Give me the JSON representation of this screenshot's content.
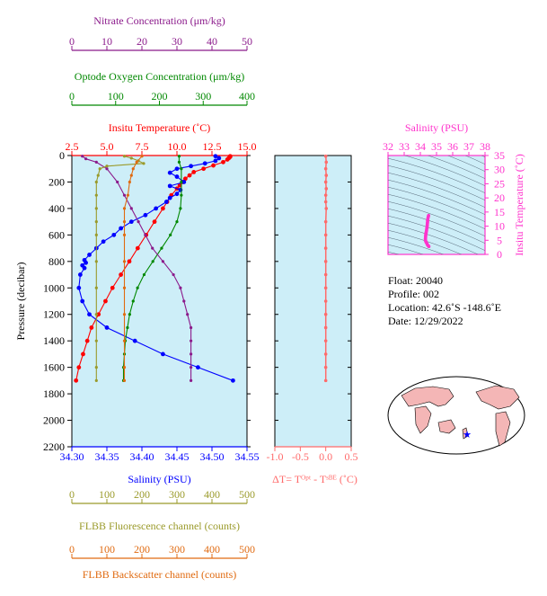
{
  "colors": {
    "plot_bg": "#cdeef8",
    "temperature": "#ff0000",
    "salinity": "#0000ff",
    "oxygen": "#008800",
    "nitrate": "#8b1a8b",
    "fluorescence": "#9a9a2a",
    "backscatter": "#e06a10",
    "delta_t": "#ff6a6a",
    "ts_panel": "#ff33cc",
    "map_land": "#f4b6b6",
    "float_marker": "#0000ff"
  },
  "float_info": {
    "float": "Float:  20040",
    "profile": "Profile:  002",
    "location": "Location:  42.6˚S  -148.6˚E",
    "date": "Date:  12/29/2022"
  },
  "chart_data": [
    {
      "type": "line",
      "panel": "main-profile",
      "ylabel": "Pressure (decibar)",
      "ylim": [
        2200,
        0
      ],
      "yticks": [
        "0",
        "200",
        "400",
        "600",
        "800",
        "1000",
        "1200",
        "1400",
        "1600",
        "1800",
        "2000",
        "2200"
      ],
      "axes": {
        "nitrate": {
          "title": "Nitrate Concentration (μm/kg)",
          "range": [
            0,
            50
          ],
          "ticks": [
            "0",
            "10",
            "20",
            "30",
            "40",
            "50"
          ]
        },
        "oxygen": {
          "title": "Optode Oxygen Concentration (μm/kg)",
          "range": [
            0,
            400
          ],
          "ticks": [
            "0",
            "100",
            "200",
            "300",
            "400"
          ]
        },
        "temperature": {
          "title": "Insitu Temperature (˚C)",
          "range": [
            2.5,
            15.0
          ],
          "ticks": [
            "2.5",
            "5.0",
            "7.5",
            "10.0",
            "12.5",
            "15.0"
          ]
        },
        "salinity": {
          "title": "Salinity (PSU)",
          "range": [
            34.3,
            34.55
          ],
          "ticks": [
            "34.30",
            "34.35",
            "34.40",
            "34.45",
            "34.50",
            "34.55"
          ]
        },
        "fluorescence": {
          "title": "FLBB Fluorescence channel (counts)",
          "range": [
            0,
            500
          ],
          "ticks": [
            "0",
            "100",
            "200",
            "300",
            "400",
            "500"
          ]
        },
        "backscatter": {
          "title": "FLBB Backscatter channel (counts)",
          "range": [
            0,
            500
          ],
          "ticks": [
            "0",
            "100",
            "200",
            "300",
            "400",
            "500"
          ]
        }
      },
      "series": [
        {
          "axis": "temperature",
          "pressure": [
            5,
            10,
            20,
            30,
            50,
            75,
            100,
            125,
            150,
            175,
            200,
            225,
            250,
            300,
            350,
            400,
            500,
            600,
            700,
            800,
            900,
            1000,
            1100,
            1200,
            1300,
            1400,
            1500,
            1600,
            1700
          ],
          "values": [
            13.8,
            13.8,
            13.7,
            13.6,
            13.3,
            12.6,
            11.9,
            11.2,
            10.9,
            10.6,
            10.4,
            10.2,
            10.0,
            9.6,
            9.3,
            9.0,
            8.4,
            7.8,
            7.2,
            6.6,
            6.0,
            5.4,
            4.9,
            4.4,
            3.9,
            3.6,
            3.3,
            3.0,
            2.8
          ]
        },
        {
          "axis": "salinity",
          "pressure": [
            5,
            20,
            40,
            60,
            80,
            100,
            130,
            160,
            200,
            230,
            260,
            290,
            320,
            350,
            400,
            450,
            500,
            550,
            600,
            650,
            700,
            750,
            790,
            810,
            830,
            850,
            900,
            1000,
            1100,
            1200,
            1300,
            1400,
            1500,
            1600,
            1700
          ],
          "values": [
            34.505,
            34.51,
            34.505,
            34.49,
            34.47,
            34.45,
            34.44,
            34.45,
            34.46,
            34.44,
            34.455,
            34.45,
            34.44,
            34.435,
            34.42,
            34.405,
            34.385,
            34.37,
            34.36,
            34.345,
            34.335,
            34.325,
            34.318,
            34.32,
            34.315,
            34.318,
            34.312,
            34.31,
            34.315,
            34.325,
            34.35,
            34.39,
            34.43,
            34.48,
            34.53
          ]
        },
        {
          "axis": "oxygen",
          "pressure": [
            5,
            50,
            100,
            200,
            300,
            400,
            500,
            600,
            700,
            800,
            900,
            1000,
            1100,
            1200,
            1300,
            1400,
            1500,
            1600,
            1700
          ],
          "values": [
            245,
            245,
            250,
            250,
            250,
            248,
            240,
            225,
            205,
            185,
            165,
            150,
            140,
            132,
            127,
            122,
            120,
            118,
            118
          ]
        },
        {
          "axis": "nitrate",
          "pressure": [
            5,
            25,
            50,
            100,
            200,
            300,
            400,
            500,
            600,
            700,
            800,
            900,
            1000,
            1100,
            1200,
            1300,
            1400,
            1500,
            1600,
            1700
          ],
          "values": [
            3,
            4,
            7,
            10,
            13,
            15,
            17,
            19,
            21,
            23,
            26,
            29,
            31,
            32,
            33,
            34,
            34,
            34,
            34,
            34
          ]
        },
        {
          "axis": "fluorescence",
          "pressure": [
            5,
            20,
            40,
            60,
            80,
            100,
            150,
            200,
            300,
            400,
            500,
            600,
            800,
            1000,
            1200,
            1400,
            1600,
            1700
          ],
          "values": [
            150,
            170,
            190,
            205,
            100,
            80,
            75,
            70,
            70,
            70,
            70,
            70,
            70,
            70,
            70,
            70,
            70,
            70
          ]
        },
        {
          "axis": "backscatter",
          "pressure": [
            5,
            50,
            100,
            150,
            200,
            300,
            400,
            500,
            600,
            800,
            1000,
            1200,
            1400,
            1600,
            1700
          ],
          "values": [
            200,
            185,
            175,
            170,
            165,
            160,
            150,
            150,
            150,
            150,
            150,
            150,
            150,
            150,
            150
          ]
        }
      ]
    },
    {
      "type": "line",
      "panel": "delta-t",
      "xlabel": "ΔT= Tᴼᵖᵗ - Tˢᴮᴱ (˚C)",
      "xlim": [
        -1.0,
        0.5
      ],
      "xticks": [
        "-1.0",
        "-0.5",
        "0.0",
        "0.5"
      ],
      "pressure": [
        5,
        50,
        100,
        150,
        200,
        250,
        300,
        350,
        400,
        500,
        600,
        700,
        800,
        900,
        1000,
        1100,
        1200,
        1300,
        1400,
        1500,
        1600,
        1700
      ],
      "values": [
        0.0,
        0.01,
        0.0,
        0.01,
        0.0,
        0.01,
        0.0,
        0.0,
        0.01,
        0.0,
        0.0,
        0.0,
        0.0,
        0.0,
        0.0,
        0.0,
        0.0,
        0.0,
        0.0,
        0.0,
        0.0,
        0.0
      ]
    },
    {
      "type": "scatter",
      "panel": "t-s-diagram",
      "title": "Salinity (PSU)",
      "ylabel": "Insitu Temperature (˚C)",
      "xlim": [
        32,
        38
      ],
      "ylim": [
        0,
        35
      ],
      "xticks": [
        "32",
        "33",
        "34",
        "35",
        "36",
        "37",
        "38"
      ],
      "yticks": [
        "0",
        "5",
        "10",
        "15",
        "20",
        "25",
        "30",
        "35"
      ],
      "salinity": [
        34.51,
        34.49,
        34.46,
        34.45,
        34.44,
        34.43,
        34.42,
        34.4,
        34.38,
        34.36,
        34.34,
        34.33,
        34.32,
        34.31,
        34.32,
        34.35,
        34.4,
        34.45,
        34.5,
        34.53
      ],
      "temperature": [
        13.8,
        13.3,
        12.6,
        11.9,
        11.2,
        10.6,
        10.0,
        9.3,
        8.4,
        7.8,
        7.2,
        6.6,
        6.0,
        5.4,
        4.9,
        4.4,
        3.9,
        3.3,
        3.0,
        2.8
      ]
    }
  ]
}
